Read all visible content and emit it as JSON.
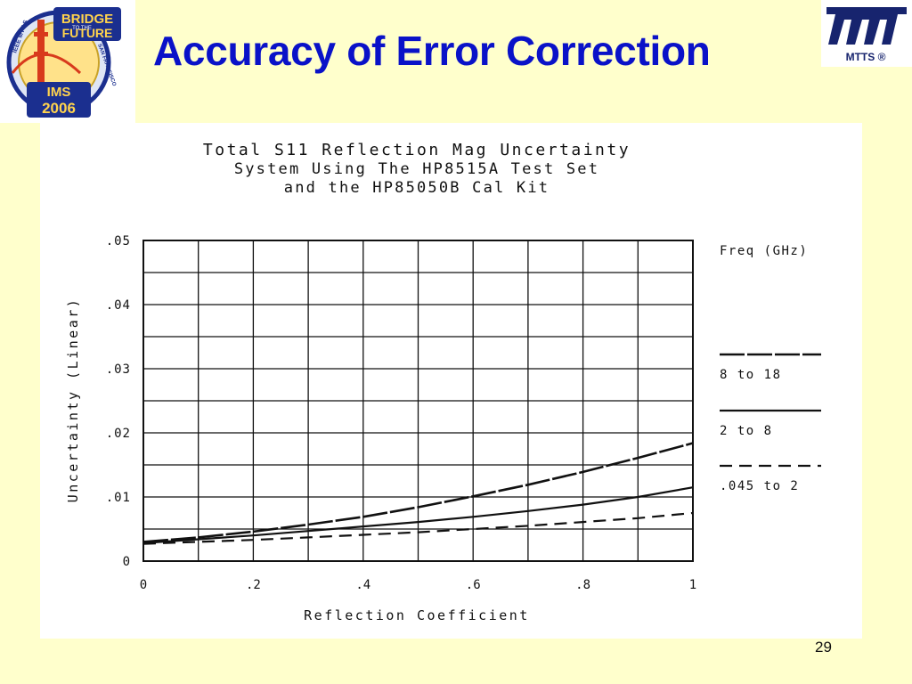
{
  "slide": {
    "title": "Accuracy of Error Correction",
    "page_number": "29"
  },
  "logos": {
    "left": {
      "icon": "ims2006-bridge-to-the-future-logo",
      "text_lines": [
        "BRIDGE",
        "TO THE",
        "FUTURE",
        "IMS",
        "2006"
      ],
      "ring_text_left": "IEEE MTT-S",
      "ring_text_right": "SAN FRANCISCO"
    },
    "right": {
      "icon": "mtts-logo",
      "text": "MTTS ®"
    }
  },
  "colors": {
    "background": "#ffffcc",
    "title": "#0a12c8",
    "plot_line": "#111111"
  },
  "chart_data": {
    "type": "line",
    "title_lines": [
      "Total S11 Reflection Mag Uncertainty",
      "System Using The HP8515A  Test Set",
      "and the HP85050B Cal Kit"
    ],
    "xlabel": "Reflection Coefficient",
    "ylabel": "Uncertainty (Linear)",
    "xlim": [
      0,
      1
    ],
    "ylim": [
      0,
      0.05
    ],
    "x_ticks": [
      0,
      0.2,
      0.4,
      0.6,
      0.8,
      1
    ],
    "x_tick_labels": [
      "0",
      ".2",
      ".4",
      ".6",
      ".8",
      "1"
    ],
    "y_ticks": [
      0,
      0.01,
      0.02,
      0.03,
      0.04,
      0.05
    ],
    "y_tick_labels": [
      "0",
      ".01",
      ".02",
      ".03",
      ".04",
      ".05"
    ],
    "grid": true,
    "grid_x_step": 0.1,
    "grid_y_step": 0.005,
    "legend_title": "Freq (GHz)",
    "legend_position": "right",
    "x": [
      0,
      0.1,
      0.2,
      0.3,
      0.4,
      0.5,
      0.6,
      0.7,
      0.8,
      0.9,
      1.0
    ],
    "series": [
      {
        "name": "8 to 18",
        "style": "long-dash",
        "values": [
          0.003,
          0.0037,
          0.0046,
          0.0057,
          0.0069,
          0.0084,
          0.0101,
          0.0119,
          0.0139,
          0.0161,
          0.0184
        ]
      },
      {
        "name": "2 to 8",
        "style": "solid",
        "values": [
          0.0028,
          0.0034,
          0.004,
          0.0047,
          0.0054,
          0.0061,
          0.0069,
          0.0078,
          0.0088,
          0.01,
          0.0115
        ]
      },
      {
        "name": ".045 to 2",
        "style": "dashed",
        "values": [
          0.0027,
          0.003,
          0.0033,
          0.0037,
          0.0041,
          0.0045,
          0.005,
          0.0055,
          0.0061,
          0.0067,
          0.0075
        ]
      }
    ]
  }
}
